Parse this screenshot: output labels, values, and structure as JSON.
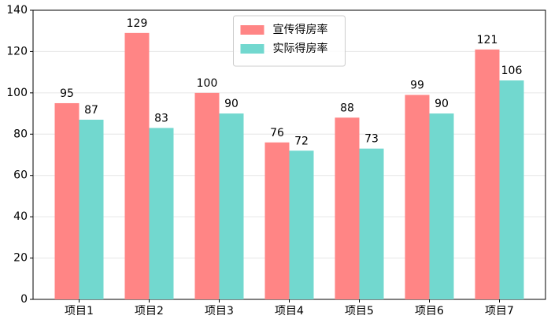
{
  "chart_data": {
    "type": "bar",
    "categories": [
      "项目1",
      "项目2",
      "项目3",
      "项目4",
      "项目5",
      "项目6",
      "项目7"
    ],
    "series": [
      {
        "name": "宣传得房率",
        "color": "#ff8585",
        "values": [
          95,
          129,
          100,
          76,
          88,
          99,
          121
        ]
      },
      {
        "name": "实际得房率",
        "color": "#72d8cf",
        "values": [
          87,
          83,
          90,
          72,
          73,
          90,
          106
        ]
      }
    ],
    "ylim": [
      0,
      140
    ],
    "yticks": [
      0,
      20,
      40,
      60,
      80,
      100,
      120,
      140
    ],
    "grid": true,
    "legend": "upper center"
  }
}
